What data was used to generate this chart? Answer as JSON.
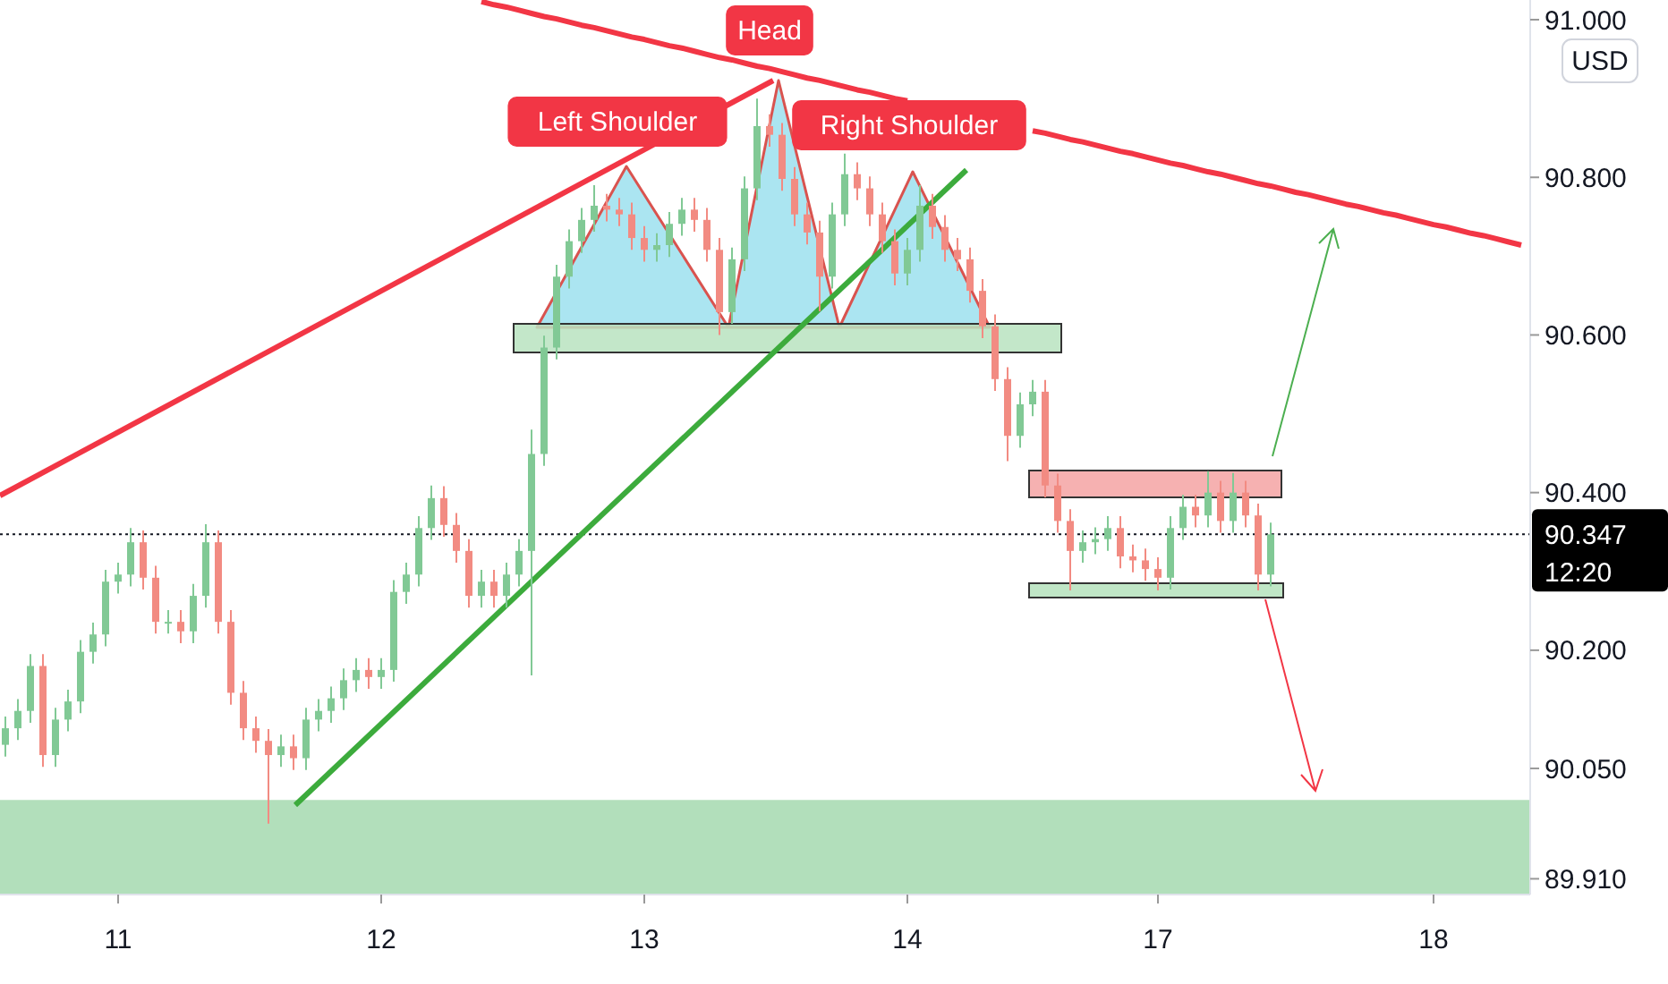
{
  "chart_data": {
    "type": "candlestick",
    "categories": [
      null,
      null,
      null,
      null,
      null,
      null,
      null,
      null,
      null,
      "11",
      null,
      null,
      null,
      null,
      null,
      null,
      null,
      null,
      null,
      null,
      null,
      null,
      null,
      null,
      null,
      null,
      null,
      null,
      null,
      null,
      "12",
      null,
      null,
      null,
      null,
      null,
      null,
      null,
      null,
      null,
      null,
      null,
      null,
      null,
      null,
      null,
      null,
      null,
      null,
      null,
      null,
      "13",
      null,
      null,
      null,
      null,
      null,
      null,
      null,
      null,
      null,
      null,
      null,
      null,
      null,
      null,
      null,
      null,
      null,
      null,
      null,
      null,
      "14",
      null,
      null,
      null,
      null,
      null,
      null,
      null,
      null,
      null,
      null,
      null,
      null,
      null,
      null,
      null,
      null,
      null,
      null,
      null,
      "17",
      null,
      null,
      null,
      null,
      null,
      null,
      null,
      null,
      null,
      null,
      null,
      null,
      null,
      null,
      null,
      null,
      null,
      null,
      null,
      null,
      null,
      "18",
      null,
      null,
      null,
      null,
      null,
      null,
      null
    ],
    "ohlc": [
      [
        90.08,
        90.116,
        90.065,
        90.101
      ],
      [
        90.101,
        90.138,
        90.086,
        90.123
      ],
      [
        90.123,
        90.195,
        90.108,
        90.18
      ],
      [
        90.18,
        90.195,
        90.052,
        90.067
      ],
      [
        90.067,
        90.127,
        90.052,
        90.112
      ],
      [
        90.112,
        90.15,
        90.097,
        90.135
      ],
      [
        90.135,
        90.213,
        90.12,
        90.198
      ],
      [
        90.198,
        90.235,
        90.183,
        90.22
      ],
      [
        90.22,
        90.302,
        90.205,
        90.287
      ],
      [
        90.287,
        90.311,
        90.272,
        90.296
      ],
      [
        90.296,
        90.355,
        90.281,
        90.337
      ],
      [
        90.337,
        90.352,
        90.277,
        90.292
      ],
      [
        90.292,
        90.307,
        90.221,
        90.236
      ],
      [
        90.236,
        90.251,
        90.221,
        90.236
      ],
      [
        90.236,
        90.251,
        90.209,
        90.224
      ],
      [
        90.224,
        90.284,
        90.209,
        90.269
      ],
      [
        90.269,
        90.36,
        90.254,
        90.337
      ],
      [
        90.337,
        90.352,
        90.221,
        90.236
      ],
      [
        90.236,
        90.251,
        90.131,
        90.146
      ],
      [
        90.146,
        90.161,
        90.086,
        90.101
      ],
      [
        90.101,
        90.116,
        90.07,
        90.085
      ],
      [
        90.085,
        90.1,
        89.98,
        90.067
      ],
      [
        90.067,
        90.093,
        90.052,
        90.078
      ],
      [
        90.078,
        90.093,
        90.048,
        90.063
      ],
      [
        90.063,
        90.127,
        90.048,
        90.112
      ],
      [
        90.112,
        90.138,
        90.097,
        90.123
      ],
      [
        90.123,
        90.154,
        90.108,
        90.139
      ],
      [
        90.139,
        90.177,
        90.124,
        90.162
      ],
      [
        90.162,
        90.19,
        90.147,
        90.175
      ],
      [
        90.175,
        90.19,
        90.151,
        90.166
      ],
      [
        90.166,
        90.19,
        90.151,
        90.175
      ],
      [
        90.175,
        90.289,
        90.16,
        90.274
      ],
      [
        90.274,
        90.311,
        90.259,
        90.296
      ],
      [
        90.296,
        90.37,
        90.281,
        90.355
      ],
      [
        90.355,
        90.409,
        90.34,
        90.393
      ],
      [
        90.393,
        90.408,
        90.344,
        90.359
      ],
      [
        90.359,
        90.374,
        90.311,
        90.326
      ],
      [
        90.326,
        90.341,
        90.254,
        90.269
      ],
      [
        90.269,
        90.302,
        90.254,
        90.287
      ],
      [
        90.287,
        90.302,
        90.254,
        90.269
      ],
      [
        90.269,
        90.311,
        90.254,
        90.296
      ],
      [
        90.296,
        90.341,
        90.281,
        90.326
      ],
      [
        90.326,
        90.48,
        90.168,
        90.449
      ],
      [
        90.449,
        90.599,
        90.434,
        90.584
      ],
      [
        90.584,
        90.689,
        90.569,
        90.674
      ],
      [
        90.674,
        90.734,
        90.659,
        90.719
      ],
      [
        90.719,
        90.761,
        90.704,
        90.746
      ],
      [
        90.746,
        90.79,
        90.731,
        90.764
      ],
      [
        90.764,
        90.779,
        90.744,
        90.759
      ],
      [
        90.759,
        90.774,
        90.738,
        90.753
      ],
      [
        90.753,
        90.768,
        90.708,
        90.723
      ],
      [
        90.723,
        90.738,
        90.693,
        90.708
      ],
      [
        90.708,
        90.729,
        90.693,
        90.714
      ],
      [
        90.714,
        90.756,
        90.699,
        90.741
      ],
      [
        90.741,
        90.774,
        90.726,
        90.759
      ],
      [
        90.759,
        90.774,
        90.731,
        90.746
      ],
      [
        90.746,
        90.761,
        90.693,
        90.708
      ],
      [
        90.708,
        90.723,
        90.6,
        90.629
      ],
      [
        90.629,
        90.711,
        90.614,
        90.696
      ],
      [
        90.696,
        90.801,
        90.681,
        90.786
      ],
      [
        90.786,
        90.9,
        90.771,
        90.865
      ],
      [
        90.865,
        90.88,
        90.839,
        90.854
      ],
      [
        90.854,
        90.869,
        90.783,
        90.798
      ],
      [
        90.798,
        90.813,
        90.738,
        90.753
      ],
      [
        90.753,
        90.768,
        90.715,
        90.73
      ],
      [
        90.73,
        90.745,
        90.63,
        90.674
      ],
      [
        90.674,
        90.768,
        90.659,
        90.753
      ],
      [
        90.753,
        90.83,
        90.738,
        90.804
      ],
      [
        90.804,
        90.819,
        90.771,
        90.786
      ],
      [
        90.786,
        90.801,
        90.738,
        90.753
      ],
      [
        90.753,
        90.768,
        90.704,
        90.719
      ],
      [
        90.719,
        90.734,
        90.663,
        90.678
      ],
      [
        90.678,
        90.723,
        90.663,
        90.708
      ],
      [
        90.708,
        90.79,
        90.693,
        90.764
      ],
      [
        90.764,
        90.779,
        90.722,
        90.737
      ],
      [
        90.737,
        90.752,
        90.693,
        90.708
      ],
      [
        90.708,
        90.723,
        90.681,
        90.696
      ],
      [
        90.696,
        90.711,
        90.641,
        90.656
      ],
      [
        90.656,
        90.671,
        90.596,
        90.611
      ],
      [
        90.611,
        90.626,
        90.529,
        90.544
      ],
      [
        90.544,
        90.559,
        90.44,
        90.472
      ],
      [
        90.472,
        90.527,
        90.457,
        90.512
      ],
      [
        90.512,
        90.543,
        90.497,
        90.528
      ],
      [
        90.528,
        90.543,
        90.394,
        90.409
      ],
      [
        90.409,
        90.424,
        90.349,
        90.364
      ],
      [
        90.364,
        90.379,
        90.276,
        90.326
      ],
      [
        90.326,
        90.352,
        90.311,
        90.337
      ],
      [
        90.337,
        90.356,
        90.322,
        90.341
      ],
      [
        90.341,
        90.37,
        90.326,
        90.355
      ],
      [
        90.355,
        90.37,
        90.304,
        90.319
      ],
      [
        90.319,
        90.334,
        90.299,
        90.314
      ],
      [
        90.314,
        90.329,
        90.288,
        90.303
      ],
      [
        90.303,
        90.318,
        90.276,
        90.292
      ],
      [
        90.292,
        90.37,
        90.277,
        90.355
      ],
      [
        90.355,
        90.397,
        90.34,
        90.382
      ],
      [
        90.382,
        90.397,
        90.356,
        90.371
      ],
      [
        90.371,
        90.427,
        90.356,
        90.4
      ],
      [
        90.4,
        90.415,
        90.349,
        90.364
      ],
      [
        90.364,
        90.425,
        90.349,
        90.4
      ],
      [
        90.4,
        90.415,
        90.356,
        90.371
      ],
      [
        90.371,
        90.386,
        90.276,
        90.296
      ],
      [
        90.296,
        90.362,
        90.281,
        90.347
      ],
      null,
      null,
      null,
      null,
      null,
      null,
      null,
      null,
      null,
      null,
      null,
      null,
      null,
      null,
      null,
      null,
      null,
      null,
      null,
      null
    ],
    "series": [
      {
        "type": "line",
        "color": "#f23645",
        "values": [
          null,
          null,
          null,
          null,
          null,
          null,
          null,
          null,
          null,
          null,
          null,
          null,
          null,
          null,
          null,
          null,
          null,
          null,
          null,
          null,
          null,
          null,
          null,
          null,
          null,
          null,
          null,
          null,
          null,
          null,
          null,
          null,
          null,
          null,
          null,
          null,
          null,
          null,
          91.023,
          91.019,
          91.016,
          91.012,
          91.008,
          91.004,
          91.001,
          90.997,
          90.993,
          90.99,
          90.986,
          90.982,
          90.978,
          90.975,
          90.971,
          90.967,
          90.964,
          90.96,
          90.956,
          90.952,
          90.949,
          90.945,
          90.941,
          90.938,
          90.934,
          90.93,
          90.926,
          90.923,
          90.919,
          90.915,
          90.911,
          90.908,
          90.904,
          90.9,
          90.897,
          null,
          null,
          null,
          null,
          null,
          null,
          null,
          null,
          null,
          90.859,
          90.856,
          90.852,
          90.848,
          90.845,
          90.841,
          90.837,
          90.833,
          90.83,
          90.826,
          90.822,
          90.818,
          90.815,
          90.811,
          90.807,
          90.804,
          90.8,
          90.796,
          90.792,
          90.789,
          90.785,
          90.781,
          90.778,
          90.774,
          90.77,
          90.766,
          90.763,
          90.759,
          90.755,
          90.752,
          90.748,
          90.744,
          90.74,
          90.737,
          90.733,
          90.729,
          90.726,
          90.722,
          90.718,
          90.714
        ]
      }
    ],
    "ylim": [
      89.89,
      91.025
    ],
    "yticks": [
      {
        "value": 91,
        "label": "91.000"
      },
      {
        "value": 90.8,
        "label": "90.800"
      },
      {
        "value": 90.6,
        "label": "90.600"
      },
      {
        "value": 90.4,
        "label": "90.400"
      },
      {
        "value": 90.2,
        "label": "90.200"
      },
      {
        "value": 90.05,
        "label": "90.050"
      },
      {
        "value": 89.91,
        "label": "89.910"
      }
    ],
    "ref_lines": [
      {
        "axis": "y",
        "value": 90.347,
        "label": "90.347",
        "line_style": "dotted",
        "color": "#131722"
      }
    ],
    "bands": [
      {
        "axis": "y",
        "from": 89.89,
        "to": 90.01,
        "color": "#b2dfbb"
      }
    ],
    "annotations": [
      "Left Shoulder",
      "Head",
      "Right Shoulder",
      "12:20",
      "USD"
    ]
  }
}
